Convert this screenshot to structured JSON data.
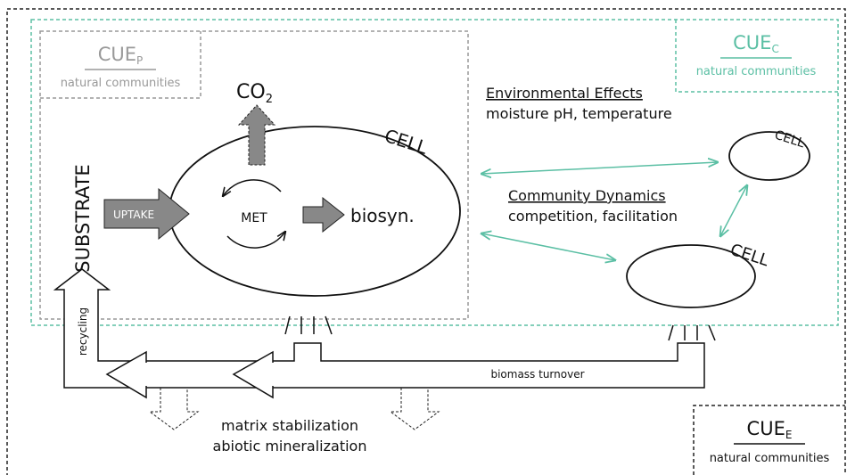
{
  "cue_p": {
    "main": "CUE",
    "sub": "P",
    "caption": "natural communities"
  },
  "cue_c": {
    "main": "CUE",
    "sub": "C",
    "caption": "natural communities"
  },
  "cue_e": {
    "main": "CUE",
    "sub": "E",
    "caption": "natural communities"
  },
  "co2": {
    "main": "CO",
    "sub": "2"
  },
  "cells": [
    "CELL",
    "CELL",
    "CELL"
  ],
  "substrate": "SUBSTRATE",
  "uptake": "UPTAKE",
  "met": "MET",
  "biosyn": "biosyn.",
  "environmental_effects": {
    "title": "Environmental Effects",
    "text": "moisture pH, temperature"
  },
  "community_dynamics": {
    "title": "Community Dynamics",
    "text": "competition, facilitation"
  },
  "recycling": "recycling",
  "biomass_turnover": "biomass turnover",
  "sinks": [
    "matrix stabilization",
    "abiotic mineralization"
  ]
}
